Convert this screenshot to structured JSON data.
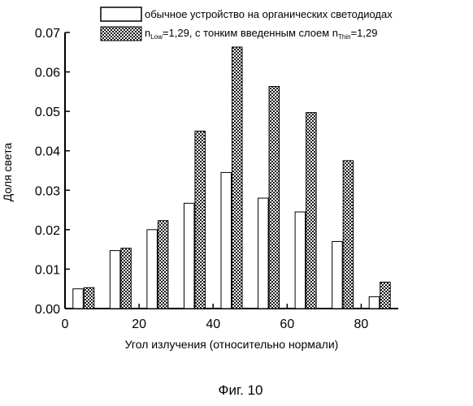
{
  "chart_data": {
    "type": "bar",
    "title": "",
    "xlabel": "Угол излучения (относительно нормали)",
    "ylabel": "Доля света",
    "xlim": [
      0,
      90
    ],
    "ylim": [
      0,
      0.07
    ],
    "x_ticks": [
      0,
      20,
      40,
      60,
      80
    ],
    "y_ticks": [
      "0.00",
      "0.01",
      "0.02",
      "0.03",
      "0.04",
      "0.05",
      "0.06",
      "0.07"
    ],
    "x": [
      5,
      15,
      25,
      35,
      45,
      55,
      65,
      75,
      85
    ],
    "series": [
      {
        "name": "обычное устройство на органических светодиодах",
        "fill": "white",
        "values": [
          0.005,
          0.0147,
          0.02,
          0.0267,
          0.0345,
          0.028,
          0.0245,
          0.017,
          0.003
        ]
      },
      {
        "name": "n_Low=1,29, с тонким введенным слоем n_Thin=1,29",
        "fill": "crosshatch",
        "values": [
          0.0053,
          0.0153,
          0.0223,
          0.045,
          0.0663,
          0.0563,
          0.0497,
          0.0375,
          0.0067
        ]
      }
    ],
    "legend_placement": "top",
    "grid": false
  },
  "legend": {
    "entry1": "обычное устройство на органических светодиодах",
    "entry2_main": "n",
    "entry2_sub1": "Low",
    "entry2_mid": "=1,29, с тонким введенным слоем n",
    "entry2_sub2": "Thin",
    "entry2_end": "=1,29"
  },
  "caption": "Фиг. 10"
}
